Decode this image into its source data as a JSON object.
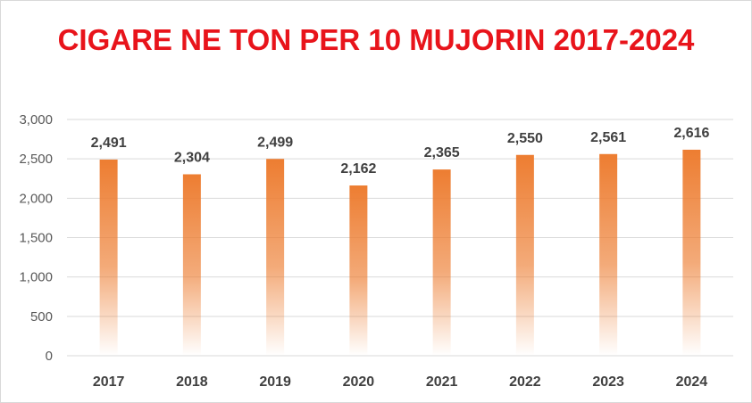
{
  "chart_data": {
    "type": "bar",
    "title": "CIGARE NE TON PER 10 MUJORIN 2017-2024",
    "categories": [
      "2017",
      "2018",
      "2019",
      "2020",
      "2021",
      "2022",
      "2023",
      "2024"
    ],
    "values": [
      2491,
      2304,
      2499,
      2162,
      2365,
      2550,
      2561,
      2616
    ],
    "value_labels": [
      "2,491",
      "2,304",
      "2,499",
      "2,162",
      "2,365",
      "2,550",
      "2,561",
      "2,616"
    ],
    "yticks": [
      "0",
      "500",
      "1,000",
      "1,500",
      "2,000",
      "2,500",
      "3,000"
    ],
    "ylim": [
      0,
      3000
    ],
    "xlabel": "",
    "ylabel": "",
    "grid": true,
    "legend": "none",
    "bar_color": "#ed7d31",
    "title_color": "#e8141b"
  }
}
